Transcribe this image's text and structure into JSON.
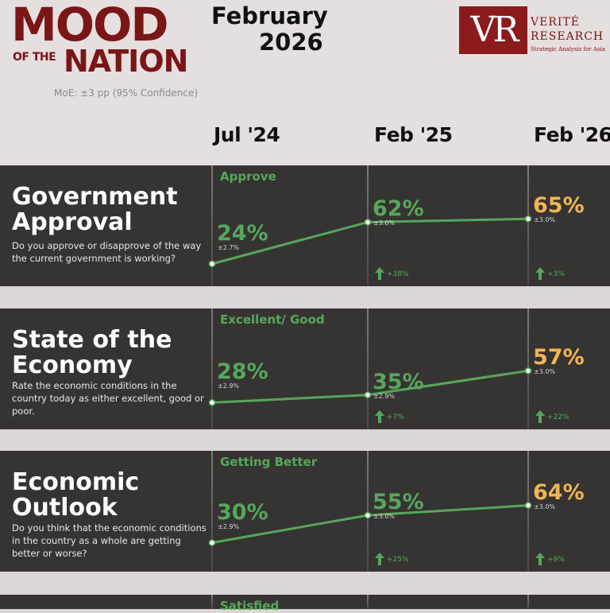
{
  "header": {
    "logo_line1": "MOOD",
    "logo_of_the": "OF THE",
    "logo_nation": "NATION",
    "moe": "MoE: ±3 pp (95% Confidence)",
    "month": "February",
    "year": "2026",
    "brand_initials": "VR",
    "brand_name_line1": "VERITÉ",
    "brand_name_line2": "RESEARCH",
    "brand_tagline": "Strategic Analysis for Asia"
  },
  "colors": {
    "accent": "#7a1518",
    "panel": "#363432",
    "series": "#55a85b",
    "latest": "#f2b552"
  },
  "chart_data": {
    "type": "line",
    "periods": [
      "Jul '24",
      "Feb '25",
      "Feb '26"
    ],
    "panels": [
      {
        "title_line1": "Government",
        "title_line2": "Approval",
        "question": "Do you approve or disapprove of the way the current government is working?",
        "response": "Approve",
        "values": [
          24,
          62,
          65
        ],
        "value_labels": [
          "24%",
          "62%",
          "65%"
        ],
        "moe": [
          "±2.7%",
          "±3.0%",
          "±3.0%"
        ],
        "changes": [
          null,
          "+38%",
          "+3%"
        ]
      },
      {
        "title_line1": "State of the",
        "title_line2": "Economy",
        "question": "Rate the economic conditions in the country today as either excellent, good or poor.",
        "response": "Excellent/ Good",
        "values": [
          28,
          35,
          57
        ],
        "value_labels": [
          "28%",
          "35%",
          "57%"
        ],
        "moe": [
          "±2.9%",
          "±2.9%",
          "±3.0%"
        ],
        "changes": [
          null,
          "+7%",
          "+22%"
        ]
      },
      {
        "title_line1": "Economic",
        "title_line2": "Outlook",
        "question": "Do you think that the economic conditions in the country as a whole are getting better or worse?",
        "response": "Getting Better",
        "values": [
          30,
          55,
          64
        ],
        "value_labels": [
          "30%",
          "55%",
          "64%"
        ],
        "moe": [
          "±2.9%",
          "±3.0%",
          "±3.0%"
        ],
        "changes": [
          null,
          "+25%",
          "+9%"
        ]
      },
      {
        "title_line1": "",
        "title_line2": "",
        "question": "",
        "response": "Satisfied",
        "values": [],
        "value_labels": [],
        "moe": [],
        "changes": []
      }
    ]
  }
}
